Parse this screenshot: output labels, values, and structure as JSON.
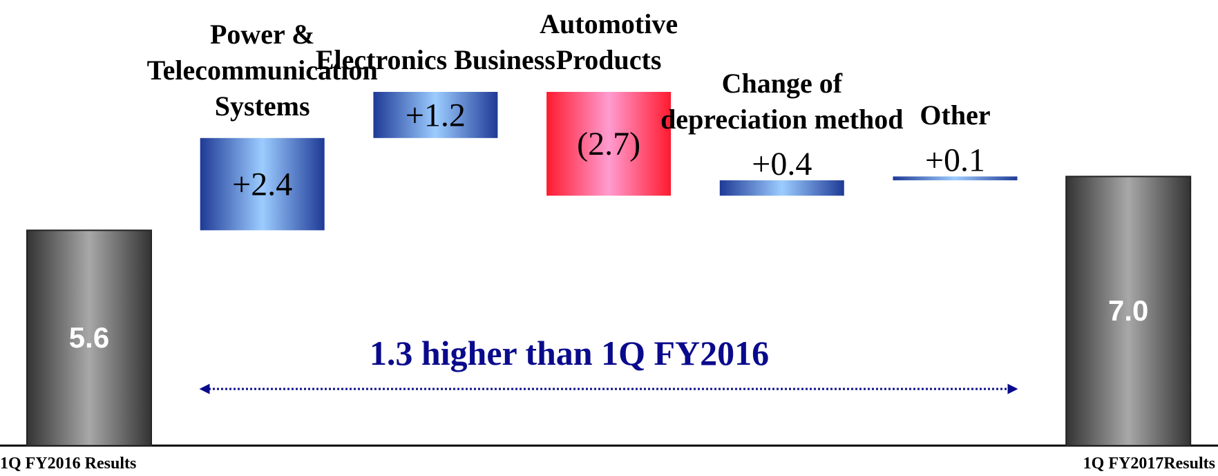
{
  "chart_data": {
    "type": "waterfall",
    "categories": [
      "1Q FY2016 Results",
      "Power & Telecommunication Systems",
      "Electronics Business",
      "Automotive Products",
      "Change of depreciation method",
      "Other",
      "1Q FY2017Results"
    ],
    "values": [
      5.6,
      2.4,
      1.2,
      -2.7,
      0.4,
      0.1,
      7.0
    ],
    "value_labels": [
      "5.6",
      "+2.4",
      "+1.2",
      "(2.7)",
      "+0.4",
      "+0.1",
      "7.0"
    ],
    "total_indices": [
      0,
      6
    ],
    "colors": {
      "total": [
        "#333333",
        "#a8a8a8"
      ],
      "increase": [
        "#1f3a96",
        "#9cccff"
      ],
      "decrease": [
        "#ff1a2e",
        "#ff9cd0"
      ]
    },
    "annotation": "1.3  higher than 1Q FY2016"
  }
}
